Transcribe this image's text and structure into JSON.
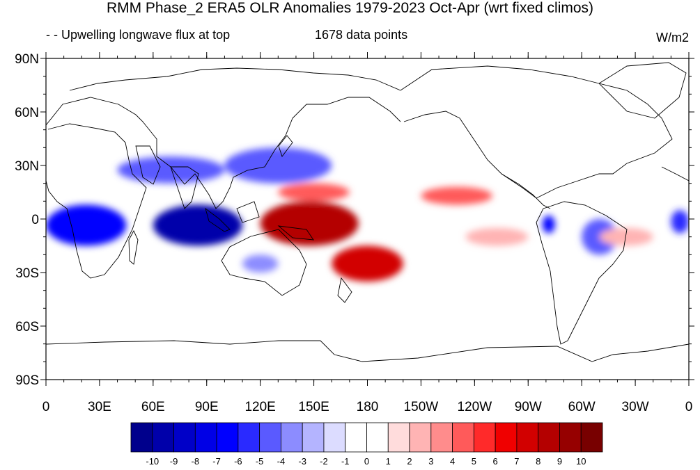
{
  "figure": {
    "title": "RMM Phase_2 ERA5 OLR Anomalies 1979-2023 Oct-Apr (wrt fixed climos)",
    "left_subtitle": "- - Upwelling longwave flux at top",
    "center_subtitle": "1678 data points",
    "units": "W/m2"
  },
  "map": {
    "projection": "cylindrical equidistant",
    "lon_range": [
      0,
      360
    ],
    "lat_range": [
      -90,
      90
    ],
    "lat_tick_labels": [
      "90N",
      "60N",
      "30N",
      "0",
      "30S",
      "60S",
      "90S"
    ],
    "lon_tick_labels": [
      "0",
      "30E",
      "60E",
      "90E",
      "120E",
      "150E",
      "180",
      "150W",
      "120W",
      "90W",
      "60W",
      "30W",
      "0"
    ]
  },
  "colorbar": {
    "labels": [
      "-10",
      "-9",
      "-8",
      "-7",
      "-6",
      "-5",
      "-4",
      "-3",
      "-2",
      "-1",
      "0",
      "1",
      "2",
      "3",
      "4",
      "5",
      "6",
      "7",
      "8",
      "9",
      "10"
    ],
    "colors": [
      "#00008c",
      "#0000aa",
      "#0000c8",
      "#0000e6",
      "#0000ff",
      "#2a2aff",
      "#5a5aff",
      "#8c8cff",
      "#b4b4ff",
      "#dcdcff",
      "#ffffff",
      "#ffffff",
      "#ffdcdc",
      "#ffb4b4",
      "#ff8c8c",
      "#ff5a5a",
      "#ff2a2a",
      "#f00000",
      "#d20000",
      "#b40000",
      "#960000",
      "#780000"
    ]
  },
  "chart_data": {
    "type": "heatmap",
    "variable": "OLR anomaly",
    "units": "W/m2",
    "anomaly_regions": [
      {
        "lon": [
          60,
          110
        ],
        "lat": [
          -15,
          8
        ],
        "value": -9
      },
      {
        "lon": [
          0,
          45
        ],
        "lat": [
          -15,
          8
        ],
        "value": -6
      },
      {
        "lon": [
          100,
          160
        ],
        "lat": [
          20,
          40
        ],
        "value": -4
      },
      {
        "lon": [
          40,
          100
        ],
        "lat": [
          20,
          35
        ],
        "value": -4
      },
      {
        "lon": [
          278,
          285
        ],
        "lat": [
          -8,
          2
        ],
        "value": -6
      },
      {
        "lon": [
          300,
          320
        ],
        "lat": [
          -20,
          0
        ],
        "value": -4
      },
      {
        "lon": [
          350,
          360
        ],
        "lat": [
          -8,
          5
        ],
        "value": -5
      },
      {
        "lon": [
          110,
          130
        ],
        "lat": [
          -30,
          -20
        ],
        "value": -3
      },
      {
        "lon": [
          120,
          175
        ],
        "lat": [
          -15,
          10
        ],
        "value": 8
      },
      {
        "lon": [
          160,
          200
        ],
        "lat": [
          -35,
          -15
        ],
        "value": 7
      },
      {
        "lon": [
          210,
          250
        ],
        "lat": [
          8,
          18
        ],
        "value": 4
      },
      {
        "lon": [
          130,
          170
        ],
        "lat": [
          10,
          20
        ],
        "value": 4
      },
      {
        "lon": [
          310,
          340
        ],
        "lat": [
          -15,
          -5
        ],
        "value": 2
      },
      {
        "lon": [
          235,
          270
        ],
        "lat": [
          -15,
          -5
        ],
        "value": 2
      }
    ]
  }
}
